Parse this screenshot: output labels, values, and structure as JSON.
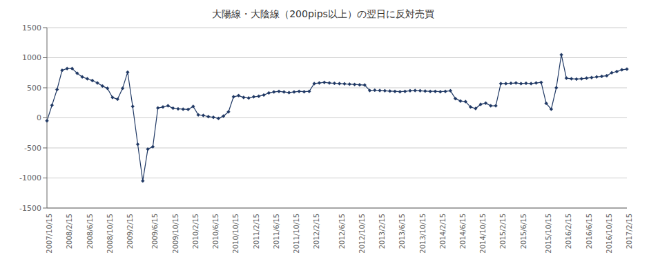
{
  "chart_data": {
    "type": "line",
    "title": "大陽線・大陰線（200pips以上）の翌日に反対売買",
    "categories": [
      "2007/10/15",
      null,
      null,
      null,
      "2008/2/15",
      null,
      null,
      null,
      "2008/6/15",
      null,
      null,
      null,
      "2008/10/15",
      null,
      null,
      null,
      "2009/2/15",
      null,
      null,
      null,
      null,
      "2009/6/15",
      null,
      null,
      null,
      "2009/10/15",
      null,
      null,
      null,
      "2010/2/15",
      null,
      null,
      null,
      "2010/6/15",
      null,
      null,
      null,
      "2010/10/15",
      null,
      null,
      null,
      "2011/2/15",
      null,
      null,
      null,
      "2011/6/15",
      null,
      null,
      null,
      "2011/10/15",
      null,
      null,
      null,
      "2012/2/15",
      null,
      null,
      null,
      null,
      "2012/6/15",
      null,
      null,
      null,
      "2012/10/15",
      null,
      null,
      null,
      "2013/2/15",
      null,
      null,
      null,
      "2013/6/15",
      null,
      null,
      null,
      "2013/10/15",
      null,
      null,
      null,
      "2014/2/15",
      null,
      null,
      null,
      "2014/6/15",
      null,
      null,
      null,
      "2014/10/15",
      null,
      null,
      null,
      "2015/2/15",
      null,
      null,
      null,
      "2015/6/15",
      null,
      null,
      null,
      null,
      "2015/10/15",
      null,
      null,
      null,
      "2016/2/15",
      null,
      null,
      null,
      "2016/6/15",
      null,
      null,
      null,
      "2016/10/15",
      null,
      null,
      null,
      "2017/2/15"
    ],
    "values": [
      -50,
      210,
      470,
      790,
      820,
      820,
      740,
      680,
      650,
      620,
      580,
      530,
      490,
      340,
      310,
      490,
      760,
      190,
      -440,
      -1050,
      -520,
      -480,
      165,
      180,
      200,
      160,
      150,
      145,
      140,
      190,
      50,
      40,
      20,
      10,
      -10,
      30,
      100,
      350,
      370,
      340,
      330,
      350,
      360,
      380,
      415,
      430,
      440,
      430,
      420,
      430,
      440,
      435,
      440,
      570,
      580,
      590,
      580,
      575,
      570,
      565,
      560,
      555,
      550,
      545,
      455,
      460,
      455,
      450,
      445,
      440,
      435,
      440,
      450,
      455,
      450,
      445,
      440,
      440,
      435,
      440,
      450,
      320,
      280,
      270,
      180,
      155,
      225,
      245,
      200,
      200,
      570,
      570,
      575,
      580,
      570,
      575,
      570,
      580,
      590,
      240,
      145,
      500,
      1050,
      660,
      650,
      645,
      650,
      660,
      670,
      680,
      690,
      700,
      750,
      770,
      800,
      810
    ],
    "color": "#1F3864",
    "marker": "diamond",
    "ylim": [
      -1500,
      1500
    ],
    "yticks": [
      -1500,
      -1000,
      -500,
      0,
      500,
      1000,
      1500
    ],
    "grid": true
  }
}
